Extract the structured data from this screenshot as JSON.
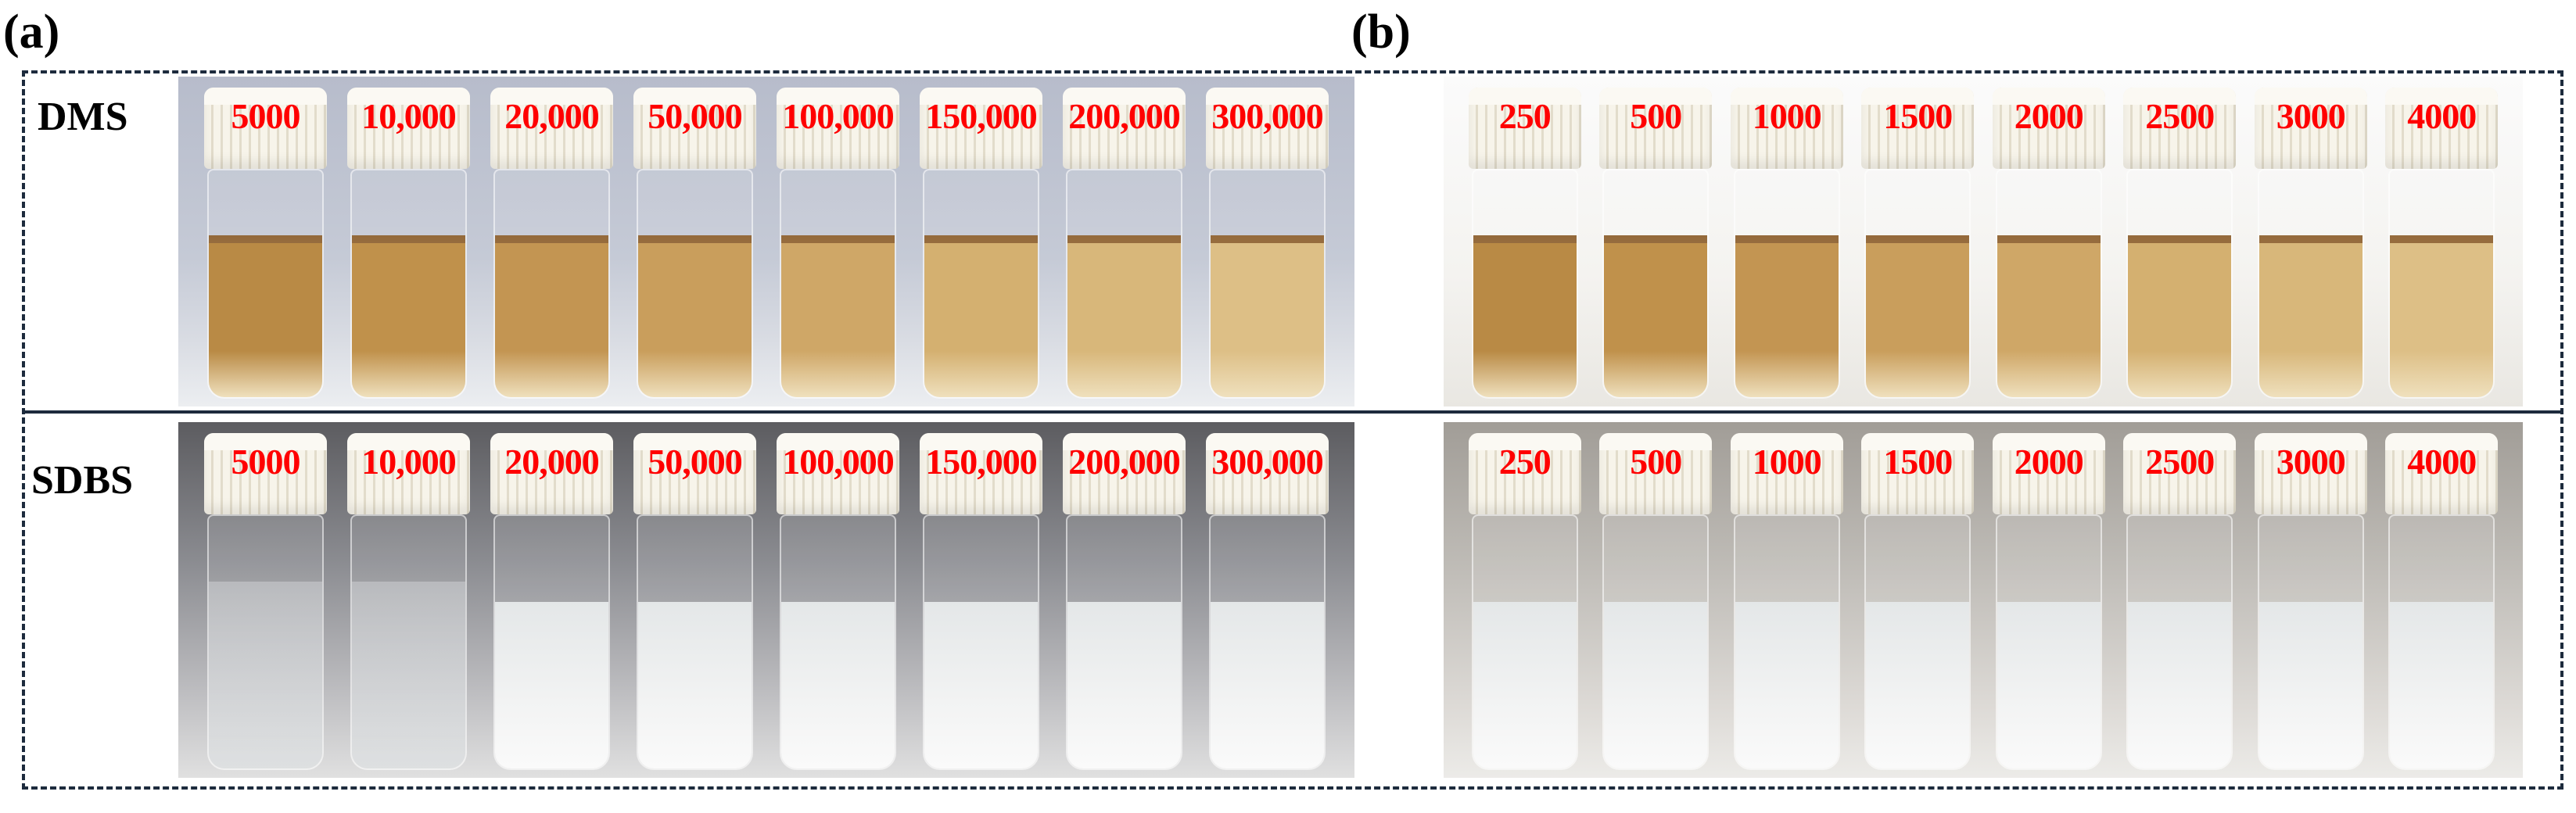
{
  "panels": {
    "a_label": "(a)",
    "b_label": "(b)"
  },
  "rows": {
    "dms_label": "DMS",
    "sdbs_label": "SDBS"
  },
  "vials": {
    "a_concentrations": [
      "5000",
      "10,000",
      "20,000",
      "50,000",
      "100,000",
      "150,000",
      "200,000",
      "300,000"
    ],
    "b_concentrations": [
      "250",
      "500",
      "1000",
      "1500",
      "2000",
      "2500",
      "3000",
      "4000"
    ]
  },
  "colors": {
    "label_text": "#ff0000",
    "frame": "#1d2b3d",
    "dms_liquid": "#c9a35e",
    "sdbs_liquid": "#eef0f0"
  }
}
